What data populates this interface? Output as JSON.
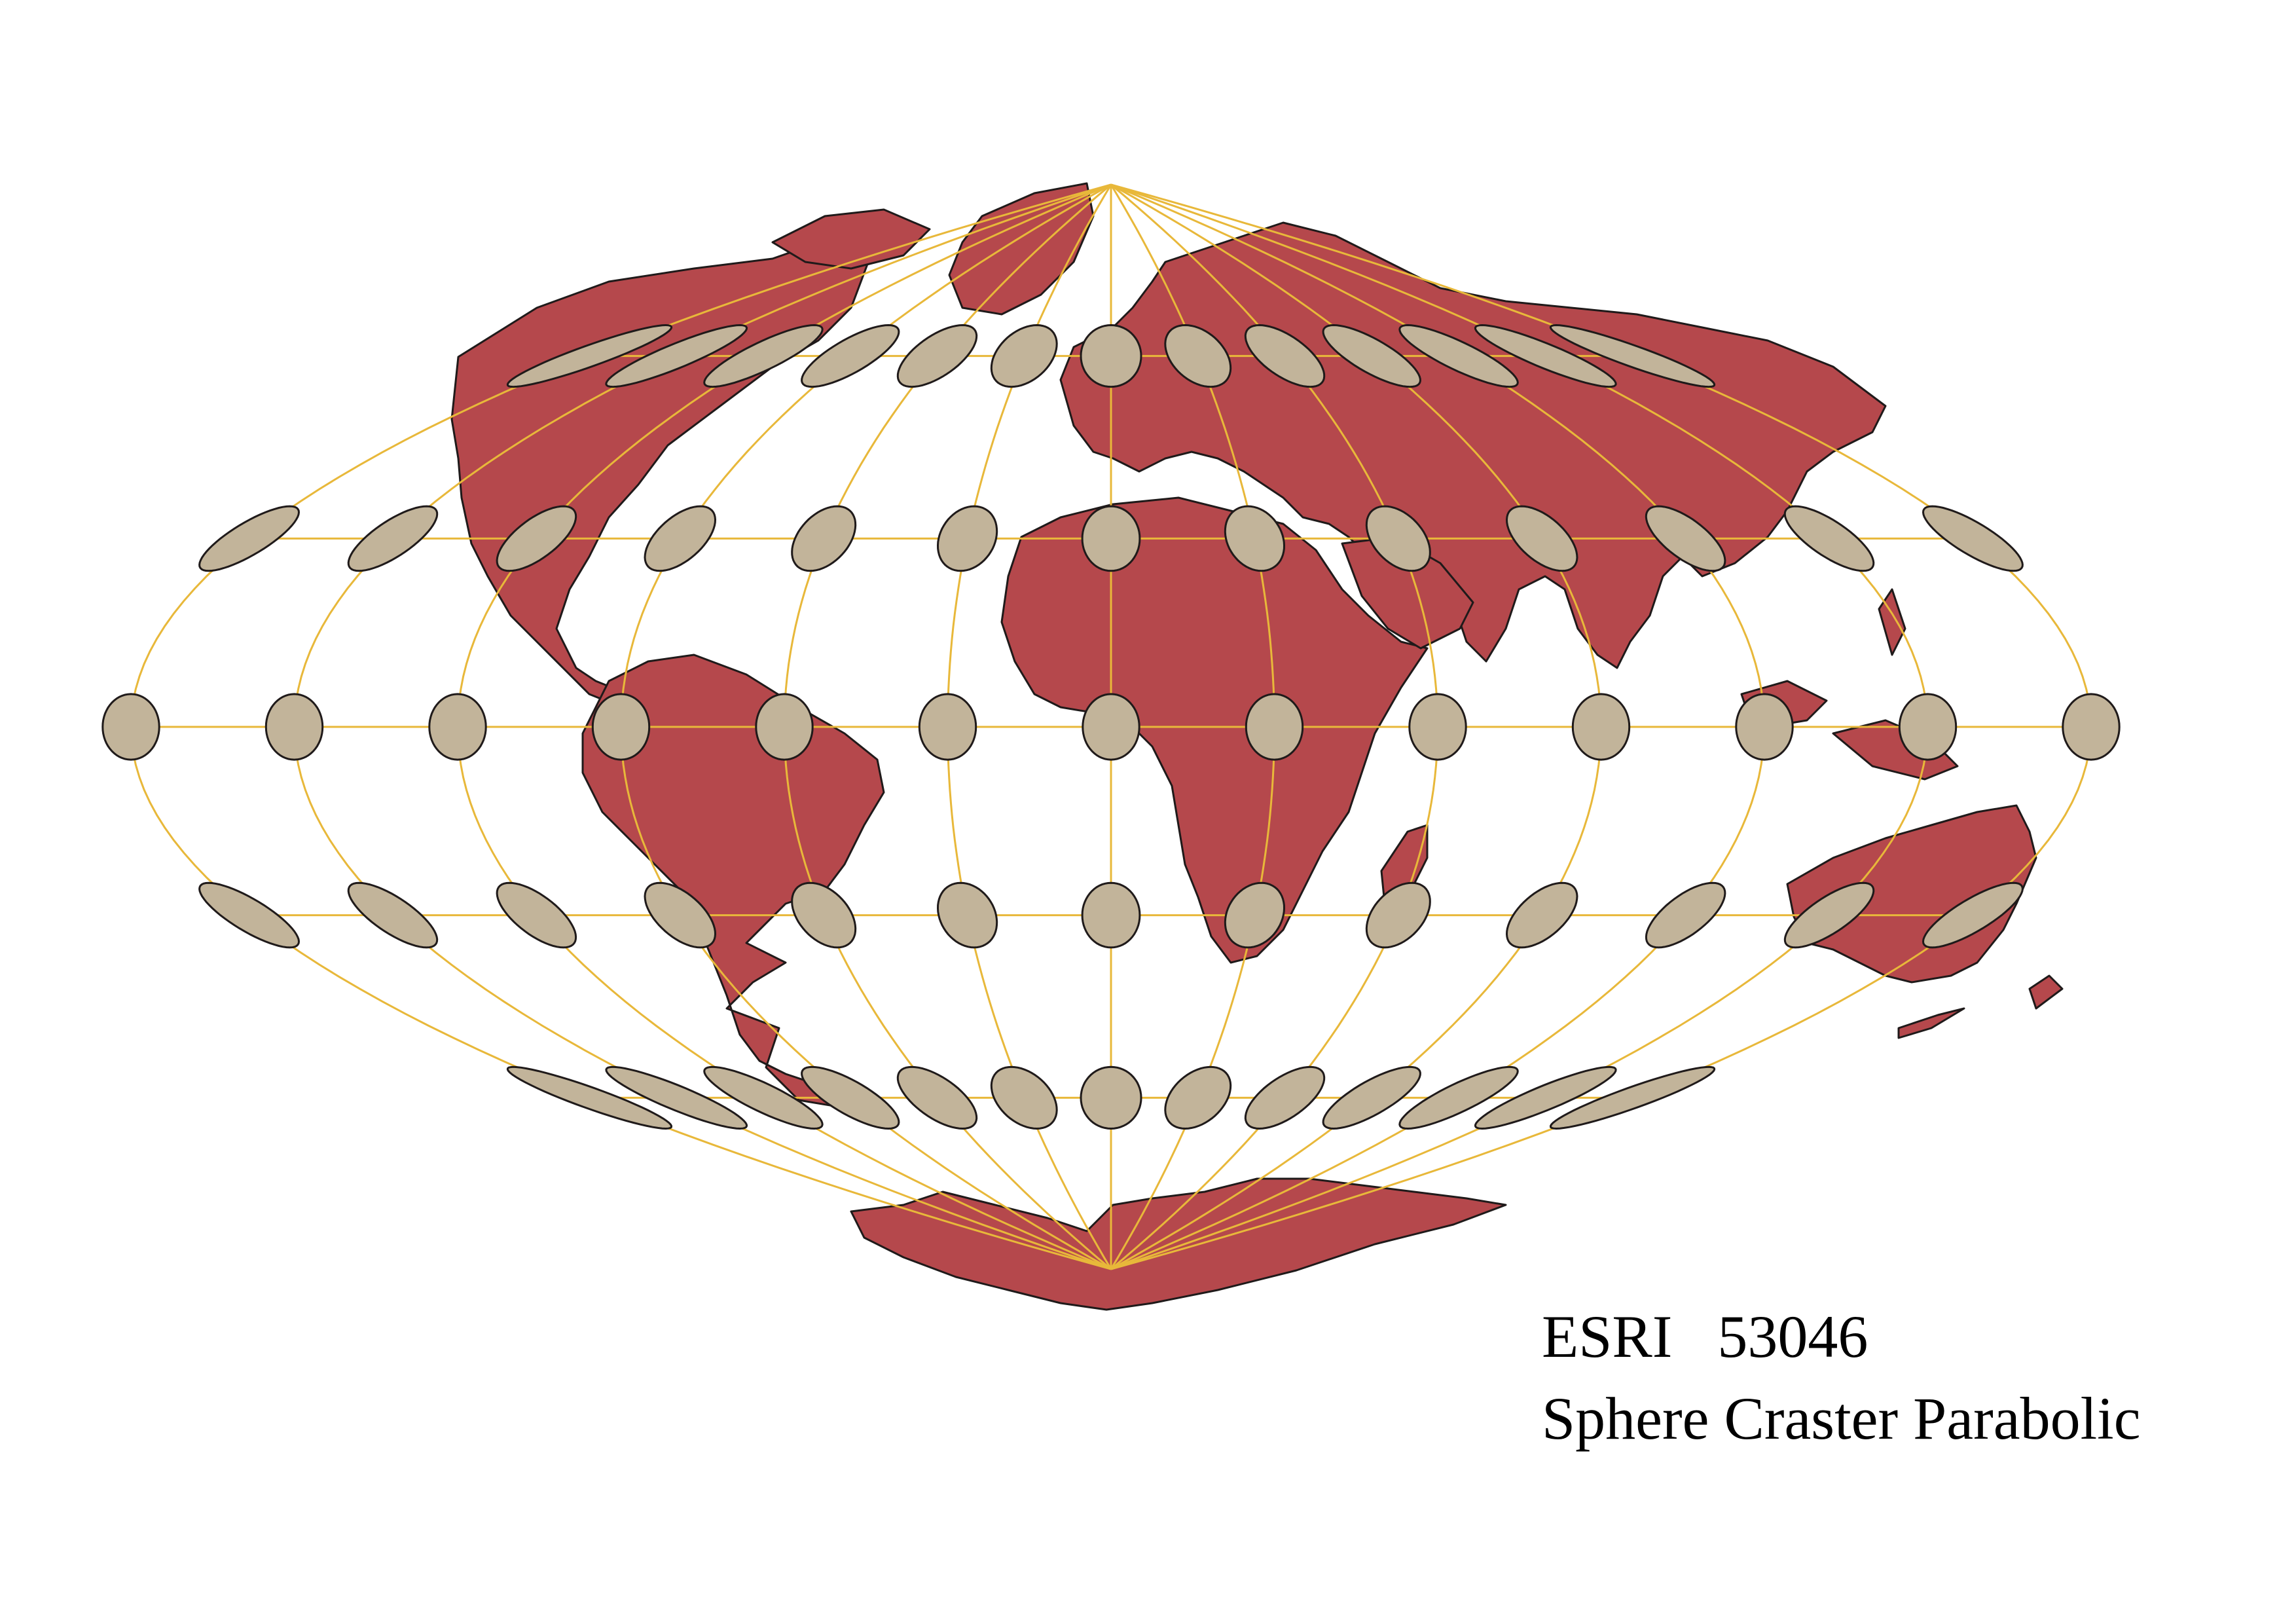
{
  "map": {
    "projection": "Sphere Craster Parabolic",
    "colors": {
      "land": "#b5484c",
      "land_outline": "#1f1a1a",
      "graticule": "#e8b83a",
      "tissot_fill": "#c2b49a",
      "background": "#ffffff"
    },
    "graticule": {
      "meridian_step_degrees": 30,
      "parallels_degrees": [
        -60,
        -30,
        0,
        30,
        60
      ]
    },
    "tissot_indicatrix": {
      "longitude_step_degrees": 30,
      "latitudes_degrees": [
        -60,
        -30,
        0,
        30,
        60
      ]
    }
  },
  "caption": {
    "code": "ESRI   53046",
    "name": "Sphere Craster Parabolic"
  }
}
